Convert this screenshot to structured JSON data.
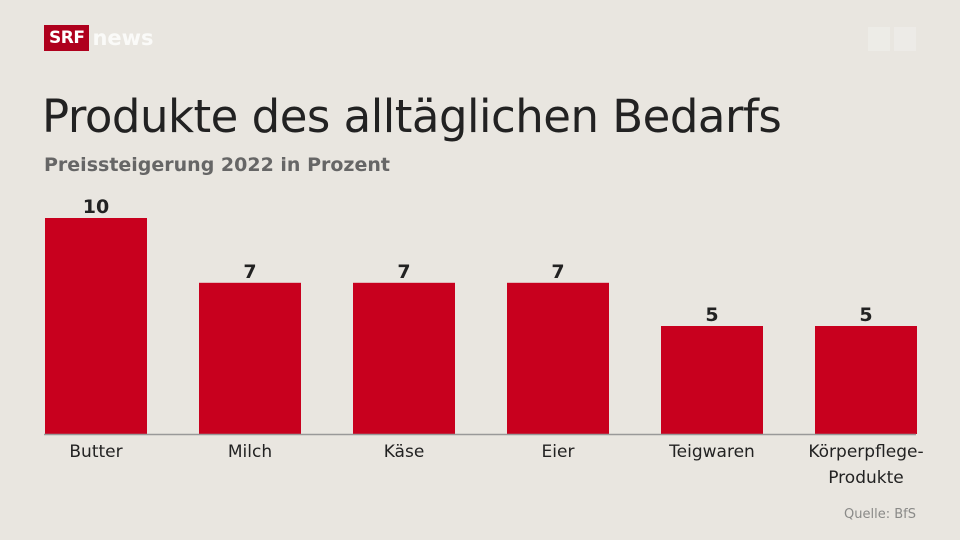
{
  "logo": {
    "brand": "SRF",
    "product": "news"
  },
  "chart_data": {
    "type": "bar",
    "title": "Produkte des alltäglichen Bedarfs",
    "subtitle": "Preissteigerung 2022 in Prozent",
    "categories": [
      [
        "Butter"
      ],
      [
        "Milch"
      ],
      [
        "Käse"
      ],
      [
        "Eier"
      ],
      [
        "Teigwaren"
      ],
      [
        "Körperpflege-",
        "Produkte"
      ]
    ],
    "values": [
      10,
      7,
      7,
      7,
      5,
      5
    ],
    "ylim": [
      0,
      10
    ],
    "grid": false,
    "bar_color": "#c8001e",
    "source": "Quelle: BfS"
  }
}
